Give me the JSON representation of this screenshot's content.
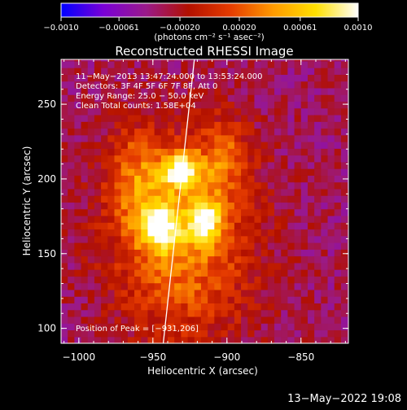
{
  "colorbar": {
    "ticks": [
      "−0.0010",
      "−0.00061",
      "−0.00020",
      "0.00020",
      "0.00061",
      "0.0010"
    ],
    "unit_label": "(photons cm⁻² s⁻¹ asec⁻²)",
    "range": [
      -0.001,
      0.001
    ],
    "colors": [
      "#0000ff",
      "#7a00d6",
      "#9a1a8a",
      "#b21000",
      "#e63c00",
      "#ff9a00",
      "#ffe000",
      "#ffffff"
    ]
  },
  "chart_data": {
    "type": "heatmap",
    "title": "Reconstructed RHESSI Image",
    "xlabel": "Heliocentric X (arcsec)",
    "ylabel": "Heliocentric Y (arcsec)",
    "xlim": [
      -1012,
      -818
    ],
    "ylim": [
      90,
      280
    ],
    "x_ticks": [
      -1000,
      -950,
      -900,
      -850
    ],
    "y_ticks": [
      100,
      150,
      200,
      250
    ],
    "x_tick_labels": [
      "−1000",
      "−950",
      "−900",
      "−850"
    ],
    "y_tick_labels": [
      "100",
      "150",
      "200",
      "250"
    ],
    "annotations": [
      "11−May−2013 13:47:24.000 to 13:53:24.000",
      "Detectors: 3F 4F 5F 6F 7F 8F, Att 0",
      "Energy Range: 25.0 − 50.0 keV",
      "Clean     Total counts: 1.58E+04"
    ],
    "peak_label": "Position of Peak = [−931,206]",
    "peak": [
      -931,
      206
    ],
    "limb_line": [
      [
        -943,
        90
      ],
      [
        -922,
        280
      ]
    ],
    "sources": [
      {
        "x": -931,
        "y": 206,
        "peak": 0.001,
        "sx": 9,
        "sy": 8
      },
      {
        "x": -945,
        "y": 168,
        "peak": 0.00085,
        "sx": 9,
        "sy": 11
      },
      {
        "x": -915,
        "y": 172,
        "peak": 0.0008,
        "sx": 8,
        "sy": 11
      },
      {
        "x": -930,
        "y": 160,
        "peak": 0.0007,
        "sx": 34,
        "sy": 48
      },
      {
        "x": -962,
        "y": 200,
        "peak": 0.00045,
        "sx": 14,
        "sy": 24
      },
      {
        "x": -902,
        "y": 216,
        "peak": 0.0004,
        "sx": 12,
        "sy": 18
      }
    ]
  },
  "footer_date": "13−May−2022 19:08"
}
